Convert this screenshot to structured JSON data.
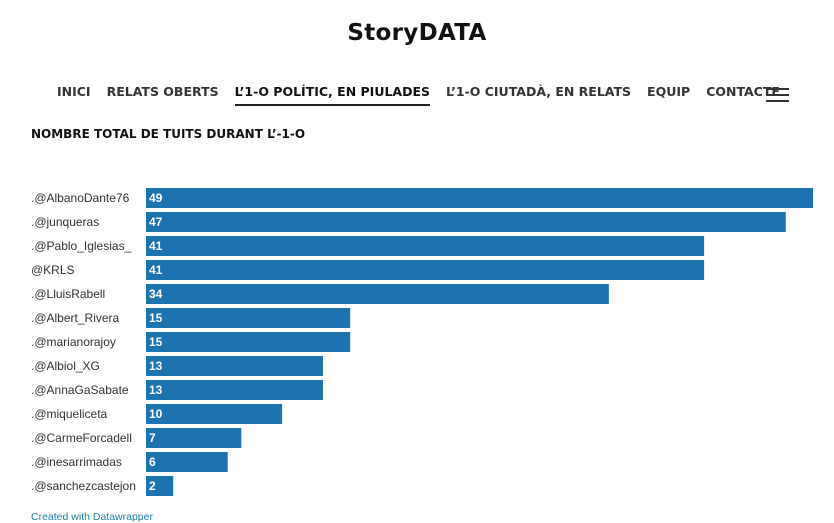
{
  "site": {
    "logo": "StoryDATA"
  },
  "nav": {
    "items": [
      {
        "label": "INICI",
        "active": false
      },
      {
        "label": "RELATS OBERTS",
        "active": false
      },
      {
        "label": "L’1-O POLÍTIC, EN PIULADES",
        "active": true
      },
      {
        "label": "L’1-O CIUTADÀ, EN RELATS",
        "active": false
      },
      {
        "label": "EQUIP",
        "active": false
      },
      {
        "label": "CONTACTE",
        "active": false
      }
    ],
    "menu_icon": "hamburger-menu-icon"
  },
  "chart_data": {
    "type": "bar",
    "orientation": "horizontal",
    "title": "NOMBRE TOTAL DE TUITS DURANT L’-1-O",
    "categories": [
      ".@AlbanoDante76",
      ".@junqueras",
      ".@Pablo_Iglesias_",
      "@KRLS",
      ".@LluisRabell",
      ".@Albert_Rivera",
      ".@marianorajoy",
      ".@Albiol_XG",
      ".@AnnaGaSabate",
      ".@miqueliceta",
      ".@CarmeForcadell",
      ".@inesarrimadas",
      ".@sanchezcastejon"
    ],
    "values": [
      49,
      47,
      41,
      41,
      34,
      15,
      15,
      13,
      13,
      10,
      7,
      6,
      2
    ],
    "xlim": [
      0,
      49
    ],
    "bar_color": "#1d72b0",
    "label_color": "#ffffff",
    "xlabel": "",
    "ylabel": ""
  },
  "footer": {
    "credit": "Created with Datawrapper"
  }
}
